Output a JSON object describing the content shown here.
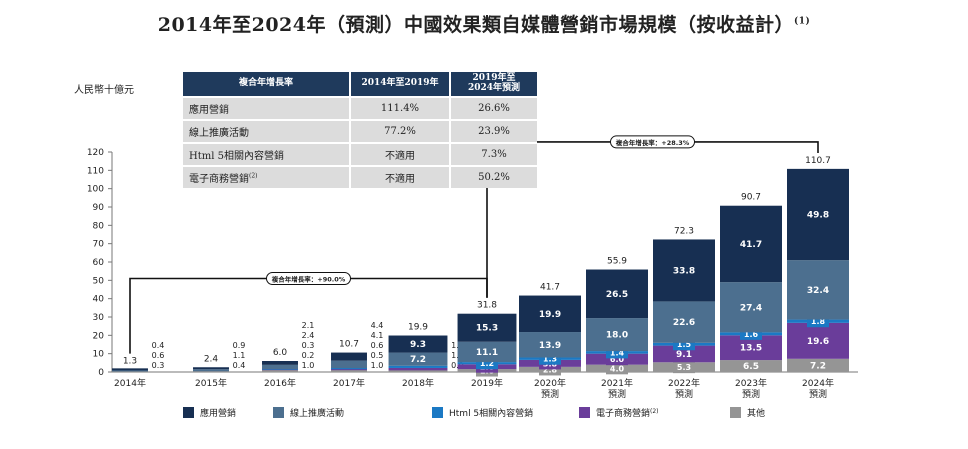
{
  "title": "2014年至2024年（預測）中國效果類自媒體營銷市場規模（按收益計）",
  "title_note": "(1)",
  "table": {
    "headers": [
      "複合年增長率",
      "2014年至2019年",
      "2019年至\n2024年預測"
    ],
    "rows": [
      {
        "label": "應用營銷",
        "sup": "",
        "c1": "111.4%",
        "c2": "26.6%"
      },
      {
        "label": "線上推廣活動",
        "sup": "",
        "c1": "77.2%",
        "c2": "23.9%"
      },
      {
        "label": "Html 5相關內容營銷",
        "sup": "",
        "c1": "不適用",
        "c2": "7.3%"
      },
      {
        "label": "電子商務營銷",
        "sup": "(2)",
        "c1": "不適用",
        "c2": "50.2%"
      }
    ]
  },
  "chart_data": {
    "type": "bar",
    "stacked": true,
    "ylabel": "人民幣十億元",
    "ylim": [
      0,
      120
    ],
    "yticks": [
      0,
      10,
      20,
      30,
      40,
      50,
      60,
      70,
      80,
      90,
      100,
      110,
      120
    ],
    "categories": [
      "2014年",
      "2015年",
      "2016年",
      "2017年",
      "2018年",
      "2019年",
      "2020年\n預測",
      "2021年\n預測",
      "2022年\n預測",
      "2023年\n預測",
      "2024年\n預測"
    ],
    "series": [
      {
        "name": "其他",
        "color": "#959595",
        "values": [
          0.3,
          0.4,
          1.0,
          1.0,
          0.9,
          1.6,
          2.8,
          4.0,
          5.3,
          6.5,
          7.2
        ]
      },
      {
        "name": "電子商務營銷",
        "color": "#6a3d9a",
        "values": [
          0.0,
          0.0,
          0.2,
          0.5,
          1.3,
          2.6,
          3.8,
          6.0,
          9.1,
          13.5,
          19.6
        ]
      },
      {
        "name": "Html 5相關內容營銷",
        "color": "#1b79c4",
        "values": [
          0.0,
          0.0,
          0.3,
          0.6,
          1.2,
          1.2,
          1.3,
          1.4,
          1.5,
          1.6,
          1.8
        ]
      },
      {
        "name": "線上推廣活動",
        "color": "#4c6f8f",
        "values": [
          0.6,
          1.1,
          2.4,
          4.1,
          7.2,
          11.1,
          13.9,
          18.0,
          22.6,
          27.4,
          32.4
        ]
      },
      {
        "name": "應用營銷",
        "color": "#172f52",
        "values": [
          0.4,
          0.9,
          2.1,
          4.4,
          9.3,
          15.3,
          19.9,
          26.5,
          33.8,
          41.7,
          49.8
        ]
      }
    ],
    "totals": [
      1.3,
      2.4,
      6.0,
      10.7,
      19.9,
      31.8,
      41.7,
      55.9,
      72.3,
      90.7,
      110.7
    ],
    "cagr_annotations": [
      {
        "text": "複合年增長率：+90.0%",
        "from": "2014年",
        "to": "2019年"
      },
      {
        "text": "複合年增長率：+28.3%",
        "from": "2019年",
        "to": "2024年"
      }
    ],
    "legend_order": [
      "應用營銷",
      "線上推廣活動",
      "Html 5相關內容營銷",
      "電子商務營銷",
      "其他"
    ],
    "legend_sups": {
      "電子商務營銷": "(2)"
    },
    "legend_position": "bottom"
  }
}
